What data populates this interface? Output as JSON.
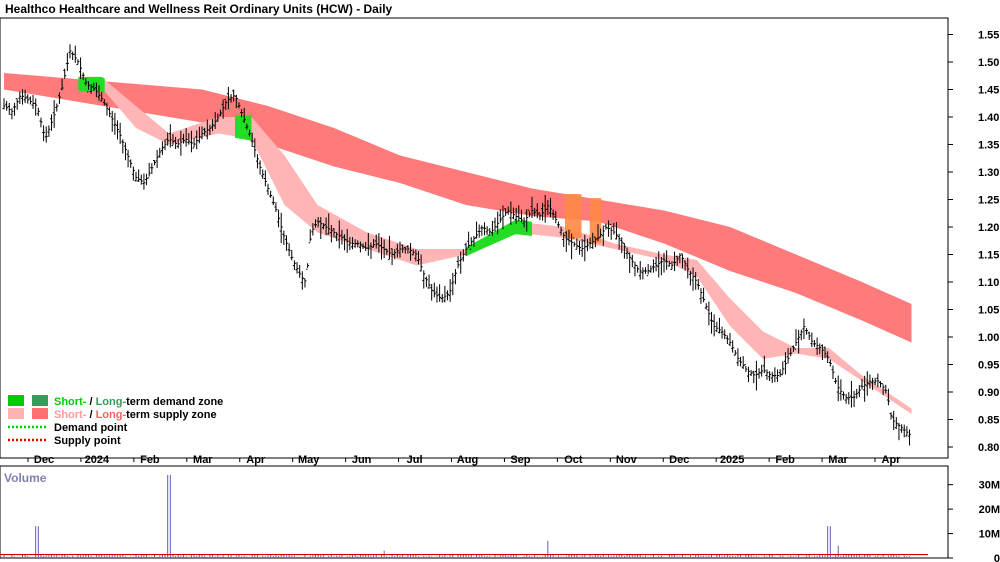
{
  "chart_data": {
    "type": "candlestick",
    "title": "Healthco Healthcare and Wellness Reit Ordinary Units (HCW) - Daily",
    "price_axis": {
      "range": [
        0.78,
        1.58
      ],
      "ticks": [
        "1.55",
        "1.50",
        "1.45",
        "1.40",
        "1.35",
        "1.30",
        "1.25",
        "1.20",
        "1.15",
        "1.10",
        "1.05",
        "1.00",
        "0.95",
        "0.90",
        "0.85",
        "0.80"
      ]
    },
    "x_axis": {
      "ticks": [
        "Dec",
        "2024",
        "Feb",
        "Mar",
        "Apr",
        "May",
        "Jun",
        "Jul",
        "Aug",
        "Sep",
        "Oct",
        "Nov",
        "Dec",
        "2025",
        "Feb",
        "Mar",
        "Apr"
      ]
    },
    "price_series": [
      {
        "d": 0,
        "c": 1.42
      },
      {
        "d": 5,
        "c": 1.41
      },
      {
        "d": 10,
        "c": 1.44
      },
      {
        "d": 15,
        "c": 1.43
      },
      {
        "d": 20,
        "c": 1.42
      },
      {
        "d": 25,
        "c": 1.36
      },
      {
        "d": 30,
        "c": 1.4
      },
      {
        "d": 35,
        "c": 1.45
      },
      {
        "d": 40,
        "c": 1.52
      },
      {
        "d": 45,
        "c": 1.5
      },
      {
        "d": 50,
        "c": 1.46
      },
      {
        "d": 55,
        "c": 1.45
      },
      {
        "d": 60,
        "c": 1.43
      },
      {
        "d": 65,
        "c": 1.4
      },
      {
        "d": 70,
        "c": 1.37
      },
      {
        "d": 75,
        "c": 1.33
      },
      {
        "d": 80,
        "c": 1.29
      },
      {
        "d": 85,
        "c": 1.28
      },
      {
        "d": 90,
        "c": 1.31
      },
      {
        "d": 95,
        "c": 1.34
      },
      {
        "d": 100,
        "c": 1.36
      },
      {
        "d": 105,
        "c": 1.35
      },
      {
        "d": 110,
        "c": 1.36
      },
      {
        "d": 115,
        "c": 1.35
      },
      {
        "d": 120,
        "c": 1.37
      },
      {
        "d": 125,
        "c": 1.38
      },
      {
        "d": 130,
        "c": 1.4
      },
      {
        "d": 135,
        "c": 1.43
      },
      {
        "d": 140,
        "c": 1.44
      },
      {
        "d": 145,
        "c": 1.4
      },
      {
        "d": 150,
        "c": 1.36
      },
      {
        "d": 155,
        "c": 1.31
      },
      {
        "d": 160,
        "c": 1.27
      },
      {
        "d": 165,
        "c": 1.23
      },
      {
        "d": 170,
        "c": 1.18
      },
      {
        "d": 175,
        "c": 1.14
      },
      {
        "d": 180,
        "c": 1.11
      },
      {
        "d": 183,
        "c": 1.1
      },
      {
        "d": 186,
        "c": 1.19
      },
      {
        "d": 190,
        "c": 1.21
      },
      {
        "d": 195,
        "c": 1.2
      },
      {
        "d": 200,
        "c": 1.19
      },
      {
        "d": 205,
        "c": 1.18
      },
      {
        "d": 210,
        "c": 1.17
      },
      {
        "d": 215,
        "c": 1.17
      },
      {
        "d": 220,
        "c": 1.16
      },
      {
        "d": 225,
        "c": 1.17
      },
      {
        "d": 230,
        "c": 1.16
      },
      {
        "d": 235,
        "c": 1.15
      },
      {
        "d": 240,
        "c": 1.16
      },
      {
        "d": 245,
        "c": 1.16
      },
      {
        "d": 250,
        "c": 1.15
      },
      {
        "d": 255,
        "c": 1.11
      },
      {
        "d": 260,
        "c": 1.08
      },
      {
        "d": 265,
        "c": 1.07
      },
      {
        "d": 270,
        "c": 1.08
      },
      {
        "d": 275,
        "c": 1.13
      },
      {
        "d": 280,
        "c": 1.16
      },
      {
        "d": 285,
        "c": 1.18
      },
      {
        "d": 290,
        "c": 1.2
      },
      {
        "d": 295,
        "c": 1.19
      },
      {
        "d": 300,
        "c": 1.21
      },
      {
        "d": 305,
        "c": 1.23
      },
      {
        "d": 310,
        "c": 1.22
      },
      {
        "d": 315,
        "c": 1.21
      },
      {
        "d": 320,
        "c": 1.23
      },
      {
        "d": 325,
        "c": 1.22
      },
      {
        "d": 330,
        "c": 1.24
      },
      {
        "d": 335,
        "c": 1.21
      },
      {
        "d": 340,
        "c": 1.18
      },
      {
        "d": 345,
        "c": 1.17
      },
      {
        "d": 350,
        "c": 1.16
      },
      {
        "d": 355,
        "c": 1.17
      },
      {
        "d": 360,
        "c": 1.18
      },
      {
        "d": 365,
        "c": 1.2
      },
      {
        "d": 370,
        "c": 1.19
      },
      {
        "d": 375,
        "c": 1.17
      },
      {
        "d": 380,
        "c": 1.14
      },
      {
        "d": 385,
        "c": 1.12
      },
      {
        "d": 390,
        "c": 1.12
      },
      {
        "d": 395,
        "c": 1.13
      },
      {
        "d": 400,
        "c": 1.14
      },
      {
        "d": 405,
        "c": 1.13
      },
      {
        "d": 410,
        "c": 1.15
      },
      {
        "d": 415,
        "c": 1.12
      },
      {
        "d": 420,
        "c": 1.1
      },
      {
        "d": 425,
        "c": 1.06
      },
      {
        "d": 430,
        "c": 1.02
      },
      {
        "d": 435,
        "c": 1.01
      },
      {
        "d": 440,
        "c": 0.99
      },
      {
        "d": 445,
        "c": 0.96
      },
      {
        "d": 450,
        "c": 0.94
      },
      {
        "d": 455,
        "c": 0.93
      },
      {
        "d": 460,
        "c": 0.94
      },
      {
        "d": 465,
        "c": 0.93
      },
      {
        "d": 470,
        "c": 0.93
      },
      {
        "d": 475,
        "c": 0.96
      },
      {
        "d": 480,
        "c": 0.99
      },
      {
        "d": 485,
        "c": 1.02
      },
      {
        "d": 490,
        "c": 0.99
      },
      {
        "d": 495,
        "c": 0.98
      },
      {
        "d": 500,
        "c": 0.96
      },
      {
        "d": 505,
        "c": 0.91
      },
      {
        "d": 510,
        "c": 0.89
      },
      {
        "d": 515,
        "c": 0.89
      },
      {
        "d": 520,
        "c": 0.91
      },
      {
        "d": 525,
        "c": 0.92
      },
      {
        "d": 530,
        "c": 0.92
      },
      {
        "d": 535,
        "c": 0.9
      },
      {
        "d": 538,
        "c": 0.85
      },
      {
        "d": 542,
        "c": 0.84
      },
      {
        "d": 546,
        "c": 0.83
      },
      {
        "d": 550,
        "c": 0.82
      }
    ],
    "long_term_zone": [
      {
        "d": 0,
        "lo": 1.45,
        "hi": 1.48
      },
      {
        "d": 40,
        "lo": 1.43,
        "hi": 1.47
      },
      {
        "d": 80,
        "lo": 1.41,
        "hi": 1.46
      },
      {
        "d": 120,
        "lo": 1.39,
        "hi": 1.45
      },
      {
        "d": 160,
        "lo": 1.35,
        "hi": 1.42
      },
      {
        "d": 200,
        "lo": 1.31,
        "hi": 1.38
      },
      {
        "d": 240,
        "lo": 1.28,
        "hi": 1.33
      },
      {
        "d": 280,
        "lo": 1.24,
        "hi": 1.3
      },
      {
        "d": 320,
        "lo": 1.22,
        "hi": 1.27
      },
      {
        "d": 360,
        "lo": 1.21,
        "hi": 1.25
      },
      {
        "d": 400,
        "lo": 1.17,
        "hi": 1.23
      },
      {
        "d": 440,
        "lo": 1.12,
        "hi": 1.2
      },
      {
        "d": 480,
        "lo": 1.08,
        "hi": 1.15
      },
      {
        "d": 520,
        "lo": 1.03,
        "hi": 1.1
      },
      {
        "d": 550,
        "lo": 0.99,
        "hi": 1.06
      }
    ],
    "short_term_zone": [
      {
        "d": 60,
        "lo": 1.45,
        "hi": 1.47
      },
      {
        "d": 80,
        "lo": 1.38,
        "hi": 1.42
      },
      {
        "d": 100,
        "lo": 1.35,
        "hi": 1.37
      },
      {
        "d": 130,
        "lo": 1.37,
        "hi": 1.4
      },
      {
        "d": 150,
        "lo": 1.36,
        "hi": 1.4
      },
      {
        "d": 170,
        "lo": 1.24,
        "hi": 1.33
      },
      {
        "d": 190,
        "lo": 1.19,
        "hi": 1.24
      },
      {
        "d": 220,
        "lo": 1.16,
        "hi": 1.19
      },
      {
        "d": 250,
        "lo": 1.13,
        "hi": 1.16
      },
      {
        "d": 280,
        "lo": 1.15,
        "hi": 1.16
      },
      {
        "d": 310,
        "lo": 1.19,
        "hi": 1.21
      },
      {
        "d": 340,
        "lo": 1.18,
        "hi": 1.2
      },
      {
        "d": 370,
        "lo": 1.16,
        "hi": 1.17
      },
      {
        "d": 400,
        "lo": 1.14,
        "hi": 1.15
      },
      {
        "d": 420,
        "lo": 1.11,
        "hi": 1.14
      },
      {
        "d": 440,
        "lo": 1.02,
        "hi": 1.07
      },
      {
        "d": 460,
        "lo": 0.96,
        "hi": 1.01
      },
      {
        "d": 480,
        "lo": 0.97,
        "hi": 0.98
      },
      {
        "d": 500,
        "lo": 0.96,
        "hi": 0.98
      },
      {
        "d": 520,
        "lo": 0.92,
        "hi": 0.93
      },
      {
        "d": 550,
        "lo": 0.86,
        "hi": 0.87
      }
    ],
    "volume_axis": {
      "ticks": [
        "30M",
        "20M",
        "10M",
        "0"
      ]
    },
    "volume_spikes": [
      {
        "d": 20,
        "v": 13
      },
      {
        "d": 100,
        "v": 34
      },
      {
        "d": 230,
        "v": 3
      },
      {
        "d": 330,
        "v": 7
      },
      {
        "d": 500,
        "v": 13
      },
      {
        "d": 505,
        "v": 5
      }
    ],
    "legend": [
      {
        "label_a": "Short-",
        "sep": " / ",
        "label_b": "Long-",
        "suffix": "term demand zone",
        "color_a": "#00cc00",
        "color_b": "#3a9a5a",
        "text_a": "#00cc00",
        "text_b": "#3a9a5a"
      },
      {
        "label_a": "Short-",
        "sep": " / ",
        "label_b": "Long-",
        "suffix": "term supply zone",
        "color_a": "#ffb3b3",
        "color_b": "#ff7070",
        "text_a": "#ff9a9a",
        "text_b": "#ff6060"
      },
      {
        "label_a": "",
        "sep": "",
        "label_b": "",
        "suffix": "Demand point",
        "line": "#00cc00"
      },
      {
        "label_a": "",
        "sep": "",
        "label_b": "",
        "suffix": "Supply point",
        "line": "#dd0000"
      }
    ],
    "volume_label": "Volume"
  }
}
